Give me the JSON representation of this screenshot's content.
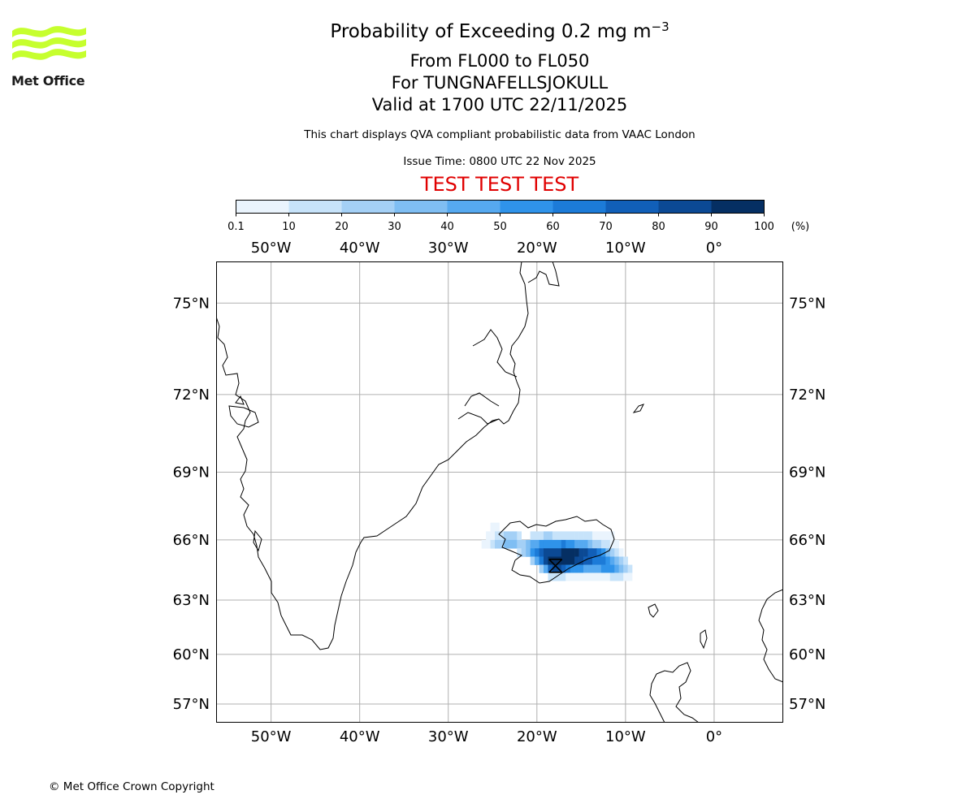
{
  "logo": {
    "text": "Met Office",
    "color": "#c6ff2e",
    "icon": "met-office-waves-icon"
  },
  "header": {
    "title": "Probability of Exceeding 0.2 mg m",
    "title_exponent": "−3",
    "flight_levels": "From FL000 to FL050",
    "location": "For TUNGNAFELLSJOKULL",
    "valid_time": "Valid at 1700 UTC 22/11/2025",
    "disclaimer": "This chart displays QVA compliant probabilistic data from VAAC London",
    "issue_time": "Issue Time: 0800 UTC 22 Nov 2025",
    "test_banner": "TEST TEST TEST"
  },
  "colorbar": {
    "unit_label": "(%)",
    "ticks": [
      "0.1",
      "10",
      "20",
      "30",
      "40",
      "50",
      "60",
      "70",
      "80",
      "90",
      "100"
    ],
    "colors": [
      "#eaf4fd",
      "#c7e3fa",
      "#a4d0f6",
      "#7fbef3",
      "#56a9f0",
      "#2f93ea",
      "#1c7bd8",
      "#115fb8",
      "#0b4994",
      "#052f63"
    ]
  },
  "chart_data": {
    "type": "heatmap",
    "title": "Probability of Exceeding 0.2 mg m-3",
    "projection": "mercator",
    "lon_range": [
      -56.2,
      7.8
    ],
    "lat_range": [
      55.8,
      76.2
    ],
    "grid_lons": [
      -50,
      -40,
      -30,
      -20,
      -10,
      0
    ],
    "grid_lats": [
      57,
      60,
      63,
      66,
      69,
      72,
      75
    ],
    "lon_labels": [
      "50°W",
      "40°W",
      "30°W",
      "20°W",
      "10°W",
      "0°"
    ],
    "lat_labels": [
      "57°N",
      "60°N",
      "63°N",
      "66°N",
      "69°N",
      "72°N",
      "75°N"
    ],
    "volcano": {
      "name": "TUNGNAFELLSJOKULL",
      "lon": -17.9,
      "lat": 64.75
    },
    "plume_cells": [
      [
        -25,
        66.6,
        5
      ],
      [
        -24.5,
        66.6,
        5
      ],
      [
        -25.5,
        66.2,
        5
      ],
      [
        -25,
        66.2,
        5
      ],
      [
        -24.5,
        66.2,
        15
      ],
      [
        -24,
        66.2,
        15
      ],
      [
        -23.5,
        66.2,
        25
      ],
      [
        -23,
        66.2,
        25
      ],
      [
        -22.5,
        66.2,
        25
      ],
      [
        -22,
        66.2,
        15
      ],
      [
        -20.5,
        66.2,
        15
      ],
      [
        -20,
        66.2,
        15
      ],
      [
        -19.5,
        66.2,
        15
      ],
      [
        -19,
        66.2,
        25
      ],
      [
        -18.5,
        66.2,
        25
      ],
      [
        -18,
        66.2,
        15
      ],
      [
        -17.5,
        66.2,
        15
      ],
      [
        -17,
        66.2,
        15
      ],
      [
        -16.5,
        66.2,
        15
      ],
      [
        -16,
        66.2,
        15
      ],
      [
        -15.5,
        66.2,
        15
      ],
      [
        -15,
        66.2,
        15
      ],
      [
        -14.5,
        66.2,
        15
      ],
      [
        -14,
        66.2,
        15
      ],
      [
        -13.5,
        66.2,
        5
      ],
      [
        -13,
        66.2,
        5
      ],
      [
        -12.5,
        66.2,
        5
      ],
      [
        -12,
        66.2,
        5
      ],
      [
        -11.5,
        66.2,
        5
      ],
      [
        -26,
        65.8,
        5
      ],
      [
        -25.5,
        65.8,
        5
      ],
      [
        -25,
        65.8,
        15
      ],
      [
        -24.5,
        65.8,
        25
      ],
      [
        -24,
        65.8,
        25
      ],
      [
        -23.5,
        65.8,
        35
      ],
      [
        -23,
        65.8,
        35
      ],
      [
        -22.5,
        65.8,
        35
      ],
      [
        -22,
        65.8,
        25
      ],
      [
        -21.5,
        65.8,
        25
      ],
      [
        -21,
        65.8,
        35
      ],
      [
        -20.5,
        65.8,
        45
      ],
      [
        -20,
        65.8,
        45
      ],
      [
        -19.5,
        65.8,
        55
      ],
      [
        -19,
        65.8,
        55
      ],
      [
        -18.5,
        65.8,
        55
      ],
      [
        -18,
        65.8,
        55
      ],
      [
        -17.5,
        65.8,
        55
      ],
      [
        -17,
        65.8,
        65
      ],
      [
        -16.5,
        65.8,
        55
      ],
      [
        -16,
        65.8,
        55
      ],
      [
        -15.5,
        65.8,
        45
      ],
      [
        -15,
        65.8,
        45
      ],
      [
        -14.5,
        65.8,
        45
      ],
      [
        -14,
        65.8,
        35
      ],
      [
        -13.5,
        65.8,
        25
      ],
      [
        -13,
        65.8,
        25
      ],
      [
        -12.5,
        65.8,
        15
      ],
      [
        -12,
        65.8,
        15
      ],
      [
        -11.5,
        65.8,
        5
      ],
      [
        -11,
        65.8,
        5
      ],
      [
        -22,
        65.4,
        15
      ],
      [
        -21.5,
        65.4,
        25
      ],
      [
        -21,
        65.4,
        35
      ],
      [
        -20.5,
        65.4,
        55
      ],
      [
        -20,
        65.4,
        65
      ],
      [
        -19.5,
        65.4,
        75
      ],
      [
        -19,
        65.4,
        85
      ],
      [
        -18.5,
        65.4,
        85
      ],
      [
        -18,
        65.4,
        85
      ],
      [
        -17.5,
        65.4,
        85
      ],
      [
        -17,
        65.4,
        95
      ],
      [
        -16.5,
        65.4,
        95
      ],
      [
        -16,
        65.4,
        95
      ],
      [
        -15.5,
        65.4,
        95
      ],
      [
        -15,
        65.4,
        85
      ],
      [
        -14.5,
        65.4,
        85
      ],
      [
        -14,
        65.4,
        75
      ],
      [
        -13.5,
        65.4,
        75
      ],
      [
        -13,
        65.4,
        65
      ],
      [
        -12.5,
        65.4,
        55
      ],
      [
        -12,
        65.4,
        35
      ],
      [
        -11.5,
        65.4,
        25
      ],
      [
        -11,
        65.4,
        15
      ],
      [
        -10.5,
        65.4,
        5
      ],
      [
        -20.5,
        65.0,
        25
      ],
      [
        -20,
        65.0,
        45
      ],
      [
        -19.5,
        65.0,
        65
      ],
      [
        -19,
        65.0,
        85
      ],
      [
        -18.5,
        65.0,
        95
      ],
      [
        -18,
        65.0,
        95
      ],
      [
        -17.5,
        65.0,
        95
      ],
      [
        -17,
        65.0,
        95
      ],
      [
        -16.5,
        65.0,
        95
      ],
      [
        -16,
        65.0,
        95
      ],
      [
        -15.5,
        65.0,
        85
      ],
      [
        -15,
        65.0,
        85
      ],
      [
        -14.5,
        65.0,
        75
      ],
      [
        -14,
        65.0,
        75
      ],
      [
        -13.5,
        65.0,
        65
      ],
      [
        -13,
        65.0,
        65
      ],
      [
        -12.5,
        65.0,
        65
      ],
      [
        -12,
        65.0,
        55
      ],
      [
        -11.5,
        65.0,
        45
      ],
      [
        -11,
        65.0,
        35
      ],
      [
        -10.5,
        65.0,
        25
      ],
      [
        -10,
        65.0,
        15
      ],
      [
        -19.5,
        64.6,
        25
      ],
      [
        -19,
        64.6,
        45
      ],
      [
        -18.5,
        64.6,
        75
      ],
      [
        -18,
        64.6,
        85
      ],
      [
        -17.5,
        64.6,
        85
      ],
      [
        -17,
        64.6,
        75
      ],
      [
        -16.5,
        64.6,
        65
      ],
      [
        -16,
        64.6,
        55
      ],
      [
        -15.5,
        64.6,
        55
      ],
      [
        -15,
        64.6,
        55
      ],
      [
        -14.5,
        64.6,
        45
      ],
      [
        -14,
        64.6,
        45
      ],
      [
        -13.5,
        64.6,
        45
      ],
      [
        -13,
        64.6,
        45
      ],
      [
        -12.5,
        64.6,
        55
      ],
      [
        -12,
        64.6,
        55
      ],
      [
        -11.5,
        64.6,
        55
      ],
      [
        -11,
        64.6,
        45
      ],
      [
        -10.5,
        64.6,
        35
      ],
      [
        -10,
        64.6,
        25
      ],
      [
        -9.5,
        64.6,
        15
      ],
      [
        -18.5,
        64.2,
        15
      ],
      [
        -18,
        64.2,
        15
      ],
      [
        -17.5,
        64.2,
        15
      ],
      [
        -17,
        64.2,
        15
      ],
      [
        -16.5,
        64.2,
        5
      ],
      [
        -16,
        64.2,
        5
      ],
      [
        -15.5,
        64.2,
        5
      ],
      [
        -15,
        64.2,
        5
      ],
      [
        -14.5,
        64.2,
        5
      ],
      [
        -14,
        64.2,
        5
      ],
      [
        -13.5,
        64.2,
        5
      ],
      [
        -13,
        64.2,
        5
      ],
      [
        -12.5,
        64.2,
        5
      ],
      [
        -12,
        64.2,
        5
      ],
      [
        -11.5,
        64.2,
        15
      ],
      [
        -11,
        64.2,
        15
      ],
      [
        -10.5,
        64.2,
        15
      ],
      [
        -10,
        64.2,
        5
      ],
      [
        -9.5,
        64.2,
        5
      ]
    ]
  },
  "footer": {
    "copyright": "© Met Office Crown Copyright"
  }
}
